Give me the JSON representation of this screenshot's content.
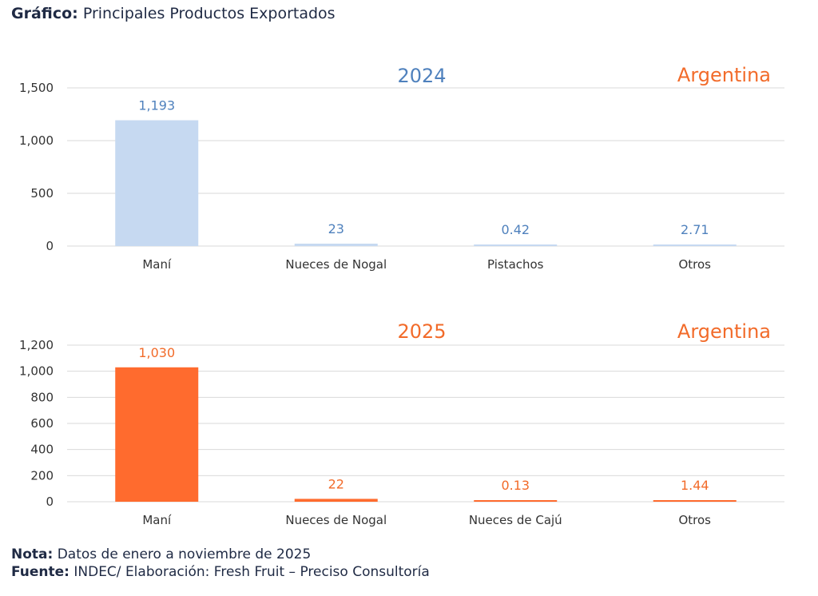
{
  "header": {
    "label": "Gráfico:",
    "title": "Principales Productos Exportados"
  },
  "colors": {
    "blue_bar": "#c6d9f1",
    "blue_text": "#4f81bd",
    "orange_bar": "#ff6b2e",
    "orange_text": "#f26b2a"
  },
  "chart_data": [
    {
      "type": "bar",
      "title": "2024",
      "annotation": "Argentina",
      "categories": [
        "Maní",
        "Nueces de Nogal",
        "Pistachos",
        "Otros"
      ],
      "values": [
        1193,
        23,
        0.42,
        2.71
      ],
      "data_labels": [
        "1,193",
        "23",
        "0.42",
        "2.71"
      ],
      "ylim": [
        0,
        1500
      ],
      "yticks": [
        0,
        500,
        1000,
        1500
      ],
      "ytick_labels": [
        "0",
        "500",
        "1,000",
        "1,500"
      ],
      "grid": true,
      "legend": "none"
    },
    {
      "type": "bar",
      "title": "2025",
      "annotation": "Argentina",
      "categories": [
        "Maní",
        "Nueces de Nogal",
        "Nueces de Cajú",
        "Otros"
      ],
      "values": [
        1030,
        22,
        0.13,
        1.44
      ],
      "data_labels": [
        "1,030",
        "22",
        "0.13",
        "1.44"
      ],
      "ylim": [
        0,
        1200
      ],
      "yticks": [
        0,
        200,
        400,
        600,
        800,
        1000,
        1200
      ],
      "ytick_labels": [
        "0",
        "200",
        "400",
        "600",
        "800",
        "1,000",
        "1,200"
      ],
      "grid": true,
      "legend": "none"
    }
  ],
  "footer": {
    "nota_label": "Nota:",
    "nota_text": "Datos de enero a noviembre de 2025",
    "fuente_label": "Fuente:",
    "fuente_text": "INDEC/ Elaboración: Fresh Fruit – Preciso Consultoría"
  }
}
